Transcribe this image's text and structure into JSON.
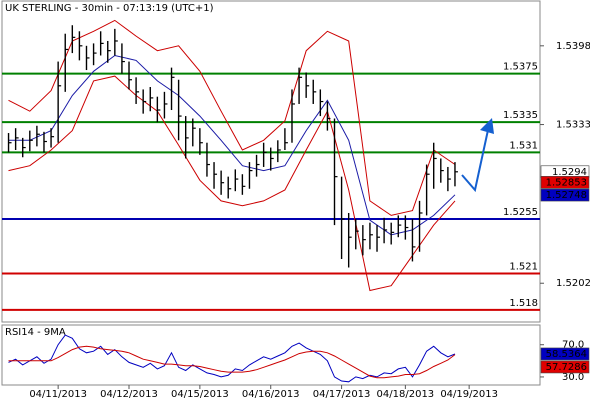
{
  "chart_data": {
    "type": "hlc",
    "title": "UK STERLING - 30min - 07:13:19 (UTC+1)",
    "xlim": [
      -0.5,
      75
    ],
    "xticks": [
      {
        "value": 7,
        "label": "04/11/2013"
      },
      {
        "value": 17,
        "label": "04/12/2013"
      },
      {
        "value": 27,
        "label": "04/15/2013"
      },
      {
        "value": 37,
        "label": "04/16/2013"
      },
      {
        "value": 47,
        "label": "04/17/2013"
      },
      {
        "value": 56,
        "label": "04/18/2013"
      },
      {
        "value": 65,
        "label": "04/19/2013"
      }
    ],
    "ylim": [
      1.517,
      1.5435
    ],
    "yticks": [
      1.5202,
      1.5333,
      1.5398
    ],
    "bars": {
      "color": "#000000",
      "high": [
        1.5326,
        1.533,
        1.5322,
        1.5328,
        1.5332,
        1.5327,
        1.533,
        1.5385,
        1.5408,
        1.5415,
        1.541,
        1.5398,
        1.54,
        1.541,
        1.5402,
        1.5412,
        1.54,
        1.5385,
        1.5372,
        1.5362,
        1.5364,
        1.5356,
        1.536,
        1.538,
        1.537,
        1.534,
        1.5338,
        1.533,
        1.5318,
        1.5302,
        1.5295,
        1.529,
        1.5296,
        1.5292,
        1.5302,
        1.5308,
        1.5318,
        1.5314,
        1.532,
        1.533,
        1.5362,
        1.538,
        1.5376,
        1.537,
        1.5362,
        1.5352,
        1.5338,
        1.529,
        1.526,
        1.5255,
        1.525,
        1.5252,
        1.525,
        1.5256,
        1.5252,
        1.5258,
        1.5258,
        1.5255,
        1.527,
        1.53,
        1.5318,
        1.5305,
        1.5298,
        1.5302
      ],
      "low": [
        1.531,
        1.5312,
        1.5306,
        1.5311,
        1.5315,
        1.531,
        1.5314,
        1.5318,
        1.536,
        1.5392,
        1.5386,
        1.5378,
        1.5382,
        1.539,
        1.5384,
        1.539,
        1.5375,
        1.5362,
        1.535,
        1.5342,
        1.5344,
        1.5335,
        1.5338,
        1.5345,
        1.532,
        1.5305,
        1.5315,
        1.5308,
        1.529,
        1.528,
        1.5275,
        1.5272,
        1.5278,
        1.5275,
        1.528,
        1.529,
        1.5298,
        1.5295,
        1.5302,
        1.5312,
        1.5318,
        1.535,
        1.5355,
        1.535,
        1.534,
        1.5328,
        1.525,
        1.5222,
        1.5215,
        1.523,
        1.5225,
        1.523,
        1.5228,
        1.5235,
        1.5234,
        1.524,
        1.5238,
        1.522,
        1.5228,
        1.5258,
        1.528,
        1.5285,
        1.5278,
        1.5282
      ],
      "close": [
        1.5318,
        1.5322,
        1.5314,
        1.532,
        1.5325,
        1.5319,
        1.5323,
        1.5365,
        1.5395,
        1.5405,
        1.5398,
        1.5388,
        1.5392,
        1.54,
        1.5394,
        1.5402,
        1.5385,
        1.537,
        1.536,
        1.5352,
        1.5355,
        1.5345,
        1.535,
        1.5372,
        1.534,
        1.5322,
        1.533,
        1.5318,
        1.53,
        1.5292,
        1.5285,
        1.528,
        1.5288,
        1.5282,
        1.5295,
        1.53,
        1.531,
        1.5305,
        1.5312,
        1.5318,
        1.535,
        1.5372,
        1.5365,
        1.536,
        1.5352,
        1.5338,
        1.529,
        1.5255,
        1.524,
        1.5245,
        1.5238,
        1.5242,
        1.524,
        1.5246,
        1.5244,
        1.525,
        1.5248,
        1.5232,
        1.526,
        1.5292,
        1.5305,
        1.5295,
        1.5288,
        1.5294
      ]
    },
    "bands": {
      "x": [
        0,
        3,
        6,
        9,
        12,
        15,
        18,
        21,
        24,
        27,
        30,
        33,
        36,
        39,
        42,
        45,
        48,
        51,
        54,
        57,
        60,
        63
      ],
      "upper": [
        1.5353,
        1.5344,
        1.5361,
        1.5402,
        1.541,
        1.5419,
        1.5406,
        1.5394,
        1.5398,
        1.5377,
        1.5344,
        1.5312,
        1.532,
        1.5336,
        1.5394,
        1.541,
        1.5402,
        1.527,
        1.5258,
        1.5262,
        1.5312,
        1.53
      ],
      "lower": [
        1.5295,
        1.5299,
        1.5312,
        1.5328,
        1.5369,
        1.5373,
        1.5357,
        1.5344,
        1.5316,
        1.5287,
        1.527,
        1.5266,
        1.527,
        1.5279,
        1.5312,
        1.5344,
        1.5279,
        1.5196,
        1.52,
        1.5225,
        1.525,
        1.527
      ],
      "middle": [
        1.532,
        1.532,
        1.5328,
        1.5357,
        1.5377,
        1.539,
        1.5386,
        1.5369,
        1.5357,
        1.534,
        1.532,
        1.5299,
        1.5295,
        1.5299,
        1.5328,
        1.5353,
        1.532,
        1.5254,
        1.5242,
        1.5246,
        1.5258,
        1.5275
      ],
      "band_color": "#cc0000",
      "middle_color": "#1a1aa6"
    },
    "levels": [
      {
        "value": 1.5375,
        "color": "#008000"
      },
      {
        "value": 1.5335,
        "color": "#008000"
      },
      {
        "value": 1.531,
        "color": "#008000"
      },
      {
        "value": 1.5255,
        "color": "#0000b0"
      },
      {
        "value": 1.521,
        "color": "#d00000"
      },
      {
        "value": 1.518,
        "color": "#d00000"
      }
    ],
    "price_tags": [
      {
        "value": 1.5294,
        "color": "#ffffff"
      },
      {
        "value": 1.52853,
        "color": "#e00000"
      },
      {
        "value": 1.52748,
        "color": "#0000c0"
      }
    ],
    "rsi": {
      "title": "RSI14 - 9MA",
      "ylim": [
        20,
        92
      ],
      "yticks": [
        {
          "value": 70,
          "label": "70.0"
        },
        {
          "value": 30,
          "label": "30.0"
        }
      ],
      "series": [
        {
          "color": "#0000c0",
          "values": [
            48,
            52,
            45,
            50,
            55,
            47,
            52,
            70,
            82,
            78,
            65,
            60,
            62,
            68,
            58,
            64,
            55,
            48,
            45,
            42,
            47,
            40,
            44,
            60,
            42,
            38,
            45,
            40,
            35,
            33,
            30,
            32,
            40,
            38,
            45,
            50,
            55,
            52,
            56,
            60,
            68,
            72,
            66,
            62,
            58,
            50,
            30,
            25,
            24,
            30,
            28,
            32,
            30,
            35,
            34,
            40,
            42,
            30,
            45,
            62,
            68,
            60,
            55,
            58.5364
          ]
        },
        {
          "color": "#cc0000",
          "values": [
            50,
            50,
            50,
            50,
            50,
            50,
            50,
            54,
            59,
            64,
            67,
            68,
            67,
            65,
            64,
            63,
            62,
            60,
            56,
            52,
            50,
            48,
            46,
            46,
            45,
            44,
            44,
            43,
            41,
            39,
            37,
            36,
            36,
            36,
            37,
            39,
            42,
            45,
            48,
            51,
            55,
            59,
            61,
            62,
            62,
            60,
            56,
            51,
            46,
            41,
            36,
            31,
            29,
            29,
            30,
            31,
            33,
            33,
            34,
            38,
            43,
            47,
            51,
            57.7286
          ]
        }
      ],
      "tags": [
        {
          "value": 58.5364,
          "color": "#0000c0"
        },
        {
          "value": 57.7286,
          "color": "#e00000"
        }
      ]
    }
  }
}
